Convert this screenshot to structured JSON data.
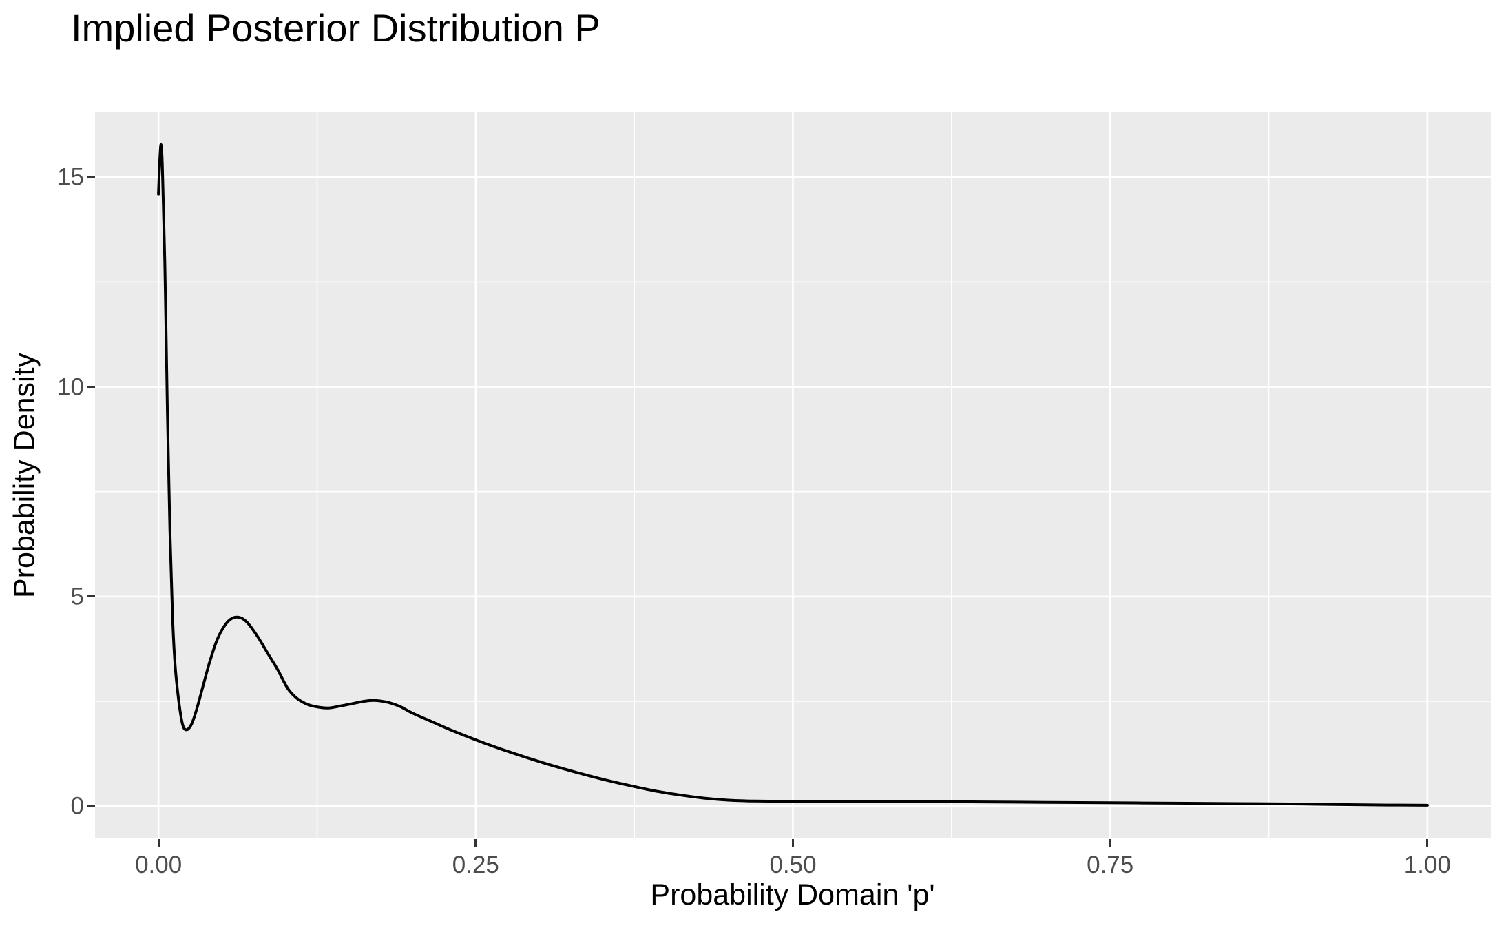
{
  "chart_data": {
    "type": "line",
    "title": "Implied Posterior Distribution P",
    "xlabel": "Probability Domain 'p'",
    "ylabel": "Probability Density",
    "legend": "none",
    "grid": {
      "major": true,
      "minor": true
    },
    "x_axis": {
      "tick_labels": [
        "0.00",
        "0.25",
        "0.50",
        "0.75",
        "1.00"
      ],
      "tick_values": [
        0,
        0.25,
        0.5,
        0.75,
        1.0
      ],
      "minor_values": [
        0.125,
        0.375,
        0.625,
        0.875
      ],
      "range": [
        -0.05,
        1.05
      ]
    },
    "y_axis": {
      "tick_labels": [
        "0",
        "5",
        "10",
        "15"
      ],
      "tick_values": [
        0,
        5,
        10,
        15
      ],
      "minor_values": [
        2.5,
        7.5,
        12.5
      ],
      "range": [
        -0.77,
        16.55
      ]
    },
    "series": [
      {
        "name": "posterior-density-curve",
        "color": "#000000",
        "x": [
          0.0,
          0.001,
          0.002,
          0.003,
          0.005,
          0.007,
          0.009,
          0.011,
          0.013,
          0.016,
          0.019,
          0.022,
          0.026,
          0.03,
          0.035,
          0.04,
          0.046,
          0.052,
          0.058,
          0.064,
          0.07,
          0.078,
          0.086,
          0.094,
          0.102,
          0.11,
          0.118,
          0.126,
          0.134,
          0.142,
          0.152,
          0.162,
          0.17,
          0.18,
          0.19,
          0.2,
          0.215,
          0.23,
          0.25,
          0.27,
          0.29,
          0.31,
          0.33,
          0.35,
          0.37,
          0.39,
          0.41,
          0.43,
          0.45,
          0.47,
          0.5,
          0.55,
          0.6,
          0.65,
          0.7,
          0.75,
          0.8,
          0.85,
          0.9,
          0.95,
          1.0
        ],
        "y": [
          14.6,
          15.4,
          15.78,
          15.3,
          13.0,
          9.5,
          6.6,
          4.6,
          3.4,
          2.5,
          1.95,
          1.82,
          1.95,
          2.3,
          2.85,
          3.4,
          3.95,
          4.3,
          4.48,
          4.5,
          4.38,
          4.05,
          3.65,
          3.25,
          2.8,
          2.55,
          2.42,
          2.36,
          2.34,
          2.38,
          2.44,
          2.5,
          2.52,
          2.48,
          2.38,
          2.22,
          2.02,
          1.82,
          1.58,
          1.36,
          1.16,
          0.97,
          0.8,
          0.64,
          0.5,
          0.37,
          0.27,
          0.19,
          0.14,
          0.12,
          0.11,
          0.11,
          0.11,
          0.1,
          0.09,
          0.08,
          0.07,
          0.06,
          0.05,
          0.03,
          0.02
        ]
      }
    ],
    "colors": {
      "panel_background": "#EBEBEB",
      "gridline": "#FFFFFF",
      "curve": "#000000",
      "tick_text": "#4D4D4D",
      "tick_mark": "#333333",
      "title_text": "#000000",
      "page_background": "#FFFFFF"
    }
  }
}
